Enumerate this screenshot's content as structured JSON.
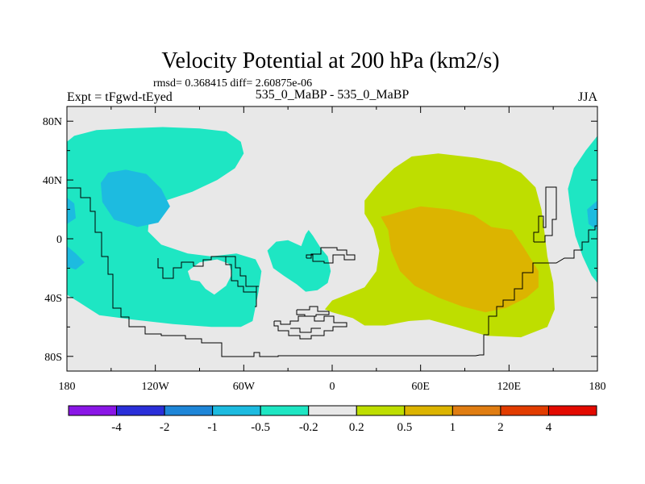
{
  "chart_data": {
    "type": "heatmap",
    "title": "Velocity Potential at 200 hPa (km2/s)",
    "subtitle_stats": "rmsd= 0.368415 diff= 2.60875e-06",
    "left_label": "Expt = tFgwd-tEyed",
    "center_label": "535_0_MaBP - 535_0_MaBP",
    "right_label": "JJA",
    "x_ticks": [
      "180",
      "120W",
      "60W",
      "0",
      "60E",
      "120E",
      "180"
    ],
    "x_tick_values": [
      -180,
      -120,
      -60,
      0,
      60,
      120,
      180
    ],
    "y_ticks": [
      "80N",
      "40N",
      "0",
      "40S",
      "80S"
    ],
    "y_tick_values": [
      80,
      40,
      0,
      -40,
      -80
    ],
    "xlim": [
      -180,
      180
    ],
    "ylim": [
      -90,
      90
    ],
    "colorbar": {
      "colors": [
        "#8a16e6",
        "#2a2fd9",
        "#1e86d8",
        "#1dbbe0",
        "#1ee6c3",
        "#e8e8e8",
        "#bede00",
        "#dcb400",
        "#e07d12",
        "#e23c00",
        "#e30a00"
      ],
      "labels": [
        "-4",
        "-2",
        "-1",
        "-0.5",
        "-0.2",
        "0.2",
        "0.5",
        "1",
        "2",
        "4"
      ]
    },
    "regions": [
      {
        "name": "teal-northwest",
        "level": -0.2,
        "points": [
          [
            -180,
            66
          ],
          [
            -175,
            70
          ],
          [
            -160,
            74
          ],
          [
            -140,
            75
          ],
          [
            -115,
            76
          ],
          [
            -90,
            75
          ],
          [
            -72,
            73
          ],
          [
            -62,
            66
          ],
          [
            -60,
            58
          ],
          [
            -66,
            48
          ],
          [
            -78,
            40
          ],
          [
            -95,
            32
          ],
          [
            -113,
            26
          ],
          [
            -124,
            18
          ],
          [
            -125,
            5
          ],
          [
            -116,
            -4
          ],
          [
            -98,
            -10
          ],
          [
            -82,
            -12
          ],
          [
            -65,
            -10
          ],
          [
            -52,
            -14
          ],
          [
            -48,
            -22
          ],
          [
            -50,
            -36
          ],
          [
            -52,
            -46
          ],
          [
            -54,
            -56
          ],
          [
            -62,
            -60
          ],
          [
            -82,
            -60
          ],
          [
            -108,
            -58
          ],
          [
            -135,
            -55
          ],
          [
            -158,
            -52
          ],
          [
            -172,
            -43
          ],
          [
            -180,
            -38
          ]
        ]
      },
      {
        "name": "blue-patch-northwest",
        "level": -0.5,
        "points": [
          [
            -152,
            45
          ],
          [
            -140,
            47
          ],
          [
            -126,
            44
          ],
          [
            -116,
            34
          ],
          [
            -110,
            22
          ],
          [
            -118,
            11
          ],
          [
            -132,
            8
          ],
          [
            -148,
            13
          ],
          [
            -156,
            25
          ],
          [
            -157,
            38
          ]
        ]
      },
      {
        "name": "blue-patch-westedge",
        "level": -0.5,
        "points": [
          [
            -180,
            28
          ],
          [
            -175,
            24
          ],
          [
            -174,
            14
          ],
          [
            -180,
            10
          ]
        ]
      },
      {
        "name": "blue-patch-westedge-south",
        "level": -0.5,
        "points": [
          [
            -180,
            -5
          ],
          [
            -174,
            -10
          ],
          [
            -168,
            -16
          ],
          [
            -174,
            -21
          ],
          [
            -180,
            -19
          ]
        ]
      },
      {
        "name": "gray-hole-southwest",
        "level": 0,
        "points": [
          [
            -98,
            -22
          ],
          [
            -90,
            -16
          ],
          [
            -78,
            -14
          ],
          [
            -70,
            -17
          ],
          [
            -68,
            -24
          ],
          [
            -72,
            -32
          ],
          [
            -80,
            -38
          ],
          [
            -86,
            -34
          ],
          [
            -90,
            -29
          ],
          [
            -96,
            -28
          ]
        ]
      },
      {
        "name": "teal-central",
        "level": -0.2,
        "points": [
          [
            -44,
            -8
          ],
          [
            -38,
            -2
          ],
          [
            -30,
            -1
          ],
          [
            -21,
            -5
          ],
          [
            -18,
            3
          ],
          [
            -16,
            6
          ],
          [
            -13,
            2
          ],
          [
            -8,
            -6
          ],
          [
            -3,
            -12
          ],
          [
            -1,
            -22
          ],
          [
            -3,
            -30
          ],
          [
            -10,
            -35
          ],
          [
            -18,
            -36
          ],
          [
            -24,
            -31
          ],
          [
            -33,
            -25
          ],
          [
            -40,
            -20
          ]
        ]
      },
      {
        "name": "teal-east",
        "level": -0.2,
        "points": [
          [
            180,
            70
          ],
          [
            172,
            60
          ],
          [
            164,
            48
          ],
          [
            160,
            34
          ],
          [
            162,
            18
          ],
          [
            165,
            2
          ],
          [
            170,
            -12
          ],
          [
            176,
            -25
          ],
          [
            180,
            -30
          ]
        ]
      },
      {
        "name": "blue-patch-east",
        "level": -0.5,
        "points": [
          [
            180,
            26
          ],
          [
            173,
            20
          ],
          [
            174,
            10
          ],
          [
            180,
            6
          ]
        ]
      },
      {
        "name": "green-east",
        "level": 0.2,
        "points": [
          [
            42,
            48
          ],
          [
            54,
            56
          ],
          [
            72,
            58
          ],
          [
            98,
            55
          ],
          [
            114,
            52
          ],
          [
            128,
            45
          ],
          [
            138,
            35
          ],
          [
            142,
            20
          ],
          [
            144,
            5
          ],
          [
            146,
            -12
          ],
          [
            150,
            -30
          ],
          [
            151,
            -48
          ],
          [
            146,
            -60
          ],
          [
            128,
            -67
          ],
          [
            105,
            -66
          ],
          [
            84,
            -60
          ],
          [
            66,
            -55
          ],
          [
            52,
            -56
          ],
          [
            36,
            -59
          ],
          [
            22,
            -59
          ],
          [
            14,
            -54
          ],
          [
            0,
            -50
          ],
          [
            -5,
            -48
          ],
          [
            0,
            -42
          ],
          [
            10,
            -38
          ],
          [
            22,
            -33
          ],
          [
            30,
            -22
          ],
          [
            32,
            -8
          ],
          [
            28,
            7
          ],
          [
            22,
            17
          ],
          [
            22,
            26
          ],
          [
            30,
            36
          ]
        ]
      },
      {
        "name": "orange-east",
        "level": 0.5,
        "points": [
          [
            38,
            16
          ],
          [
            48,
            19
          ],
          [
            60,
            22
          ],
          [
            80,
            20
          ],
          [
            96,
            16
          ],
          [
            108,
            8
          ],
          [
            122,
            6
          ],
          [
            130,
            -6
          ],
          [
            140,
            -22
          ],
          [
            140,
            -33
          ],
          [
            132,
            -40
          ],
          [
            118,
            -47
          ],
          [
            104,
            -50
          ],
          [
            88,
            -46
          ],
          [
            72,
            -40
          ],
          [
            56,
            -32
          ],
          [
            46,
            -22
          ],
          [
            40,
            -8
          ],
          [
            38,
            6
          ],
          [
            33,
            15
          ]
        ]
      }
    ]
  }
}
